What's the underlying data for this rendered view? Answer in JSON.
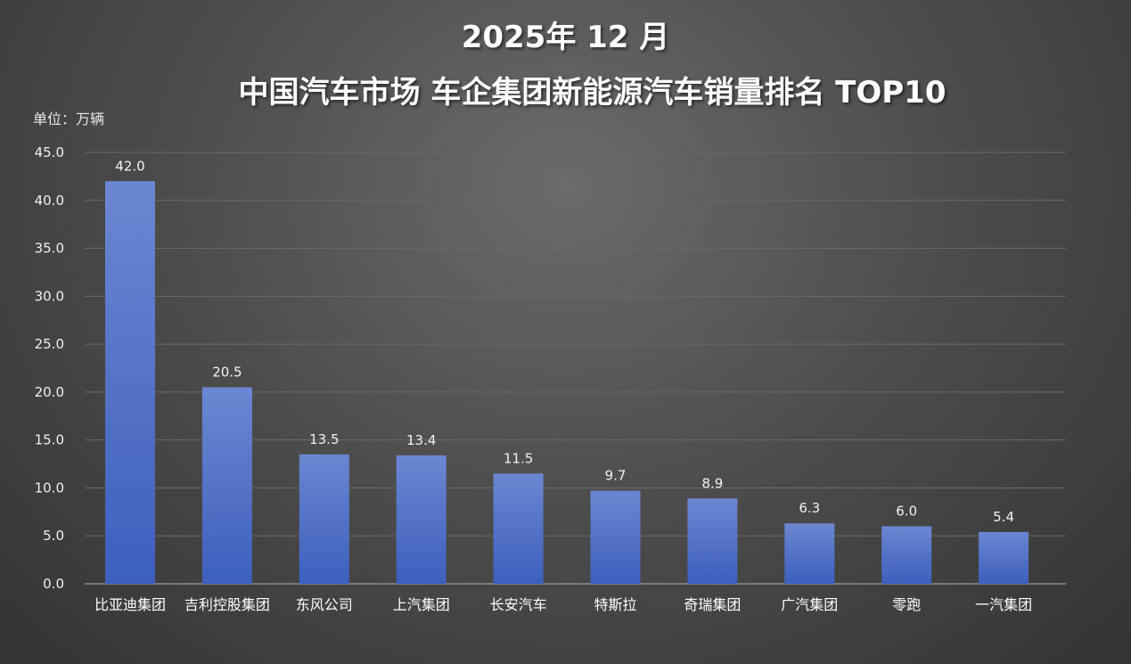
{
  "chart_data": {
    "type": "bar",
    "title": "2025年 12 月",
    "subtitle": "中国汽车市场  车企集团新能源汽车销量排名  TOP10",
    "unit": "单位：万辆",
    "categories": [
      "比亚迪集团",
      "吉利控股集团",
      "东风公司",
      "上汽集团",
      "长安汽车",
      "特斯拉",
      "奇瑞集团",
      "广汽集团",
      "零跑",
      "一汽集团"
    ],
    "values": [
      42.0,
      20.5,
      13.5,
      13.4,
      11.5,
      9.7,
      8.9,
      6.3,
      6.0,
      5.4
    ],
    "value_labels": [
      "42.0",
      "20.5",
      "13.5",
      "13.4",
      "11.5",
      "9.7",
      "8.9",
      "6.3",
      "6.0",
      "5.4"
    ],
    "y_ticks": [
      "0.0",
      "5.0",
      "10.0",
      "15.0",
      "20.0",
      "25.0",
      "30.0",
      "35.0",
      "40.0",
      "45.0"
    ],
    "ylim": [
      0,
      45
    ],
    "grid": true,
    "legend": "none",
    "colors": {
      "bar_top": "#6b87d2",
      "bar_bottom": "#3d5fbd",
      "grid": "#6a6a6a",
      "axis": "#9a9a9a"
    }
  }
}
